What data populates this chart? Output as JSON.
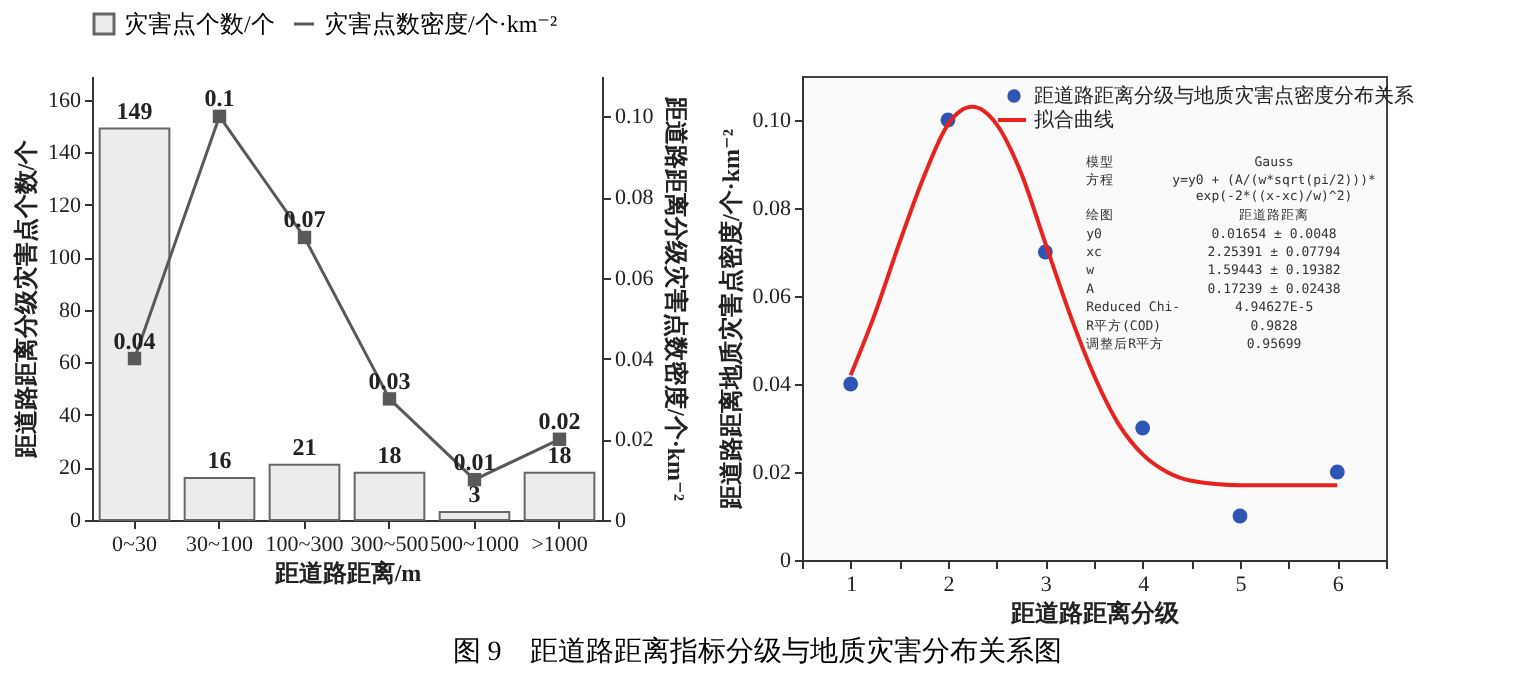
{
  "chart_data": [
    {
      "type": "bar",
      "xlabel": "距道路距离/m",
      "ylabel": "距道路距离分级灾害点个数/个",
      "y2label": "距道路距离分级灾害点数密度/个·km⁻²",
      "legend": "top",
      "data_labels": true,
      "marker": "square",
      "categories": [
        "0~30",
        "30~100",
        "100~300",
        "300~500",
        "500~1000",
        ">1000"
      ],
      "ylim": [
        0,
        169
      ],
      "yticks": [
        0,
        20,
        40,
        60,
        80,
        100,
        120,
        140,
        160
      ],
      "y2lim": [
        0,
        0.11
      ],
      "y2ticks": [
        0,
        0.02,
        0.04,
        0.06,
        0.08,
        {
          "value": 0.1,
          "label": "0.10"
        }
      ],
      "series": [
        {
          "name": "灾害点个数/个",
          "color": "#ececec",
          "values": [
            149,
            16,
            21,
            18,
            3,
            18
          ]
        },
        {
          "name": "灾害点数密度/个·km⁻²",
          "type": "line",
          "axis": "y2",
          "color": "#595959",
          "values": [
            0.04,
            0.1,
            0.07,
            0.03,
            0.01,
            0.02
          ]
        }
      ],
      "annotations": [
        "图 9　距道路距离指标分级与地质灾害分布关系图"
      ]
    },
    {
      "type": "scatter",
      "xlabel": "距道路距离分级",
      "ylabel": "距道路距离地质灾害点密度/个·km⁻²",
      "legend": "top right",
      "x": [
        1,
        2,
        3,
        4,
        5,
        6
      ],
      "xlim": [
        0.5,
        6.5
      ],
      "xticks": [
        {
          "value": 0.5,
          "label": null
        },
        1,
        {
          "value": 1.5,
          "label": null
        },
        2,
        {
          "value": 2.5,
          "label": null
        },
        3,
        {
          "value": 3.5,
          "label": null
        },
        4,
        {
          "value": 4.5,
          "label": null
        },
        5,
        {
          "value": 5.5,
          "label": null
        },
        6,
        {
          "value": 6.5,
          "label": null
        }
      ],
      "ylim": [
        0,
        0.11
      ],
      "yticks": [
        0,
        0.02,
        0.04,
        0.06,
        0.08,
        {
          "value": 0.1,
          "label": "0.10"
        }
      ],
      "series": [
        {
          "name": "距道路距离分级与地质灾害点密度分布关系",
          "color": "#2f55b4",
          "marker": "circle",
          "values": [
            0.04,
            0.1,
            0.07,
            0.03,
            0.01,
            0.02
          ]
        },
        {
          "name": "拟合曲线",
          "type": "line",
          "marker": "none",
          "color": "#e8231f",
          "x": [
            1,
            1.25,
            1.5,
            1.75,
            2,
            2.25,
            2.5,
            2.75,
            3,
            3.25,
            3.5,
            3.75,
            4,
            4.25,
            4.5,
            5,
            5.5,
            6
          ],
          "values": [
            0.042,
            0.056,
            0.072,
            0.087,
            0.099,
            0.103,
            0.099,
            0.088,
            0.072,
            0.056,
            0.042,
            0.031,
            0.024,
            0.02,
            0.018,
            0.017,
            0.017,
            0.017
          ]
        }
      ],
      "annotations": [
        "模型",
        "Gauss",
        "方程",
        "y=y0 + (A/(w*sqrt(pi/2)))*exp(-2*((x-xc)/w)^2)",
        "绘图",
        "距道路距离",
        "y0",
        "0.01654 ± 0.0048",
        "xc",
        "2.25391 ± 0.07794",
        "w",
        "1.59443 ± 0.19382",
        "A",
        "0.17239 ± 0.02438",
        "Reduced Chi-",
        "4.94627E-5",
        "R平方(COD)",
        "0.9828",
        "调整后R平方",
        "0.95699"
      ]
    }
  ]
}
